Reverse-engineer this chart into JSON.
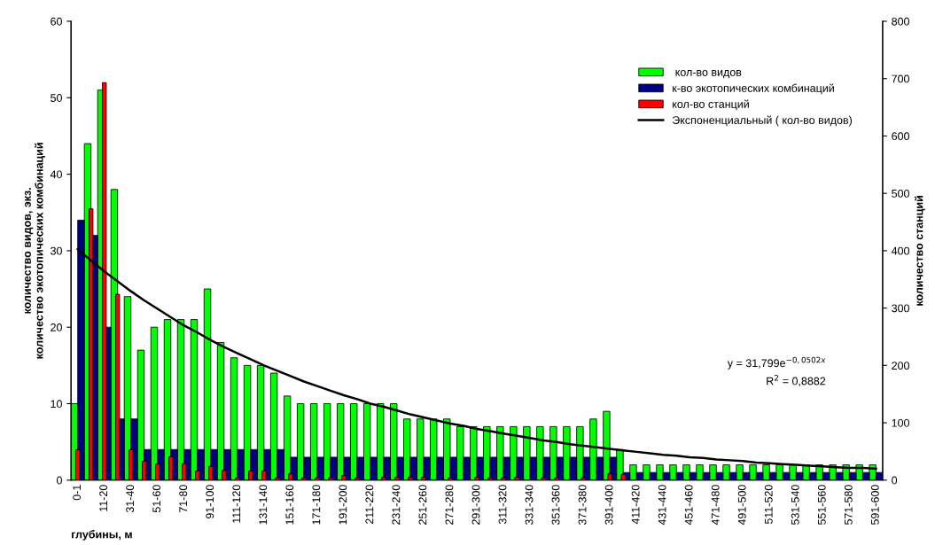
{
  "chart_data": {
    "type": "bar",
    "xlabel": "глубины, м",
    "ylabel": "количество видов, экз.\nколичество экотопических комбинаций",
    "y2label": "количество станций",
    "categories": [
      "0-1",
      null,
      "11-20",
      null,
      "31-40",
      null,
      "51-60",
      null,
      "71-80",
      null,
      "91-100",
      null,
      "111-120",
      null,
      "131-140",
      null,
      "151-160",
      null,
      "171-180",
      null,
      "191-200",
      null,
      "211-220",
      null,
      "231-240",
      null,
      "251-260",
      null,
      "271-280",
      null,
      "291-300",
      null,
      "311-320",
      null,
      "331-340",
      null,
      "351-360",
      null,
      "371-380",
      null,
      "391-400",
      null,
      "411-420",
      null,
      "431-440",
      null,
      "451-460",
      null,
      "471-480",
      null,
      "491-500",
      null,
      "511-520",
      null,
      "531-540",
      null,
      "551-560",
      null,
      "571-580",
      null,
      "591-600"
    ],
    "series": [
      {
        "name": " кол-во видов",
        "color": "#00ff00",
        "values": [
          10,
          44,
          51,
          38,
          24,
          17,
          20,
          21,
          21,
          21,
          25,
          18,
          16,
          15,
          15,
          14,
          11,
          10,
          10,
          10,
          10,
          10,
          10,
          10,
          10,
          8,
          8,
          8,
          8,
          7,
          7,
          7,
          7,
          7,
          7,
          7,
          7,
          7,
          7,
          8,
          9,
          4,
          2,
          2,
          2,
          2,
          2,
          2,
          2,
          2,
          2,
          2,
          2,
          2,
          2,
          2,
          2,
          2,
          2,
          2,
          2
        ]
      },
      {
        "name": "к-во экотопических комбинаций",
        "color": "#000080",
        "values": [
          34,
          32,
          20,
          8,
          8,
          4,
          4,
          4,
          4,
          4,
          4,
          4,
          4,
          4,
          4,
          4,
          3,
          3,
          3,
          3,
          3,
          3,
          3,
          3,
          3,
          3,
          3,
          3,
          3,
          3,
          3,
          3,
          3,
          3,
          3,
          3,
          3,
          3,
          3,
          3,
          3,
          1,
          1,
          1,
          1,
          1,
          1,
          1,
          1,
          1,
          1,
          1,
          1,
          1,
          1,
          1,
          1,
          1,
          1,
          1,
          1
        ]
      },
      {
        "name": "кол-во станций",
        "color": "#ff0000",
        "axis": "y2",
        "values": [
          53,
          473,
          693,
          324,
          53,
          33,
          28,
          41,
          29,
          16,
          24,
          17,
          4,
          16,
          16,
          4,
          11,
          4,
          4,
          4,
          8,
          4,
          null,
          5,
          5,
          5,
          5,
          null,
          4,
          null,
          5,
          4,
          4,
          5,
          null,
          4,
          4,
          null,
          4,
          null,
          11,
          10,
          null,
          null,
          null,
          null,
          null,
          null,
          null,
          null,
          null,
          null,
          null,
          null,
          null,
          null,
          null,
          null,
          null,
          null,
          null
        ]
      },
      {
        "name": "Экспоненциальный ( кол-во видов)",
        "type": "line",
        "color": "#000000",
        "values": [
          30.2,
          28.7,
          27.3,
          26.0,
          24.7,
          23.5,
          22.4,
          21.3,
          20.2,
          19.3,
          18.3,
          17.4,
          16.6,
          15.8,
          15.0,
          14.3,
          13.6,
          12.9,
          12.3,
          11.7,
          11.1,
          10.6,
          10.0,
          9.6,
          9.1,
          8.6,
          8.2,
          7.8,
          7.4,
          7.1,
          6.7,
          6.4,
          6.1,
          5.8,
          5.5,
          5.2,
          5.0,
          4.7,
          4.5,
          4.3,
          4.1,
          3.9,
          3.7,
          3.5,
          3.3,
          3.2,
          3.0,
          2.9,
          2.7,
          2.6,
          2.5,
          2.3,
          2.2,
          2.1,
          2.0,
          1.9,
          1.8,
          1.7,
          1.6,
          1.6,
          1.5
        ]
      }
    ],
    "ylim": [
      0,
      60
    ],
    "yticks": [
      0,
      10,
      20,
      30,
      40,
      50,
      60
    ],
    "y2lim": [
      0,
      800
    ],
    "y2ticks": [
      0,
      100,
      200,
      300,
      400,
      500,
      600,
      700,
      800
    ],
    "annotations": [
      "y = 31,799e$^{−0,0502x}$",
      "R$^{2}$ = 0,8882"
    ],
    "grid": false,
    "legend": "top right"
  }
}
